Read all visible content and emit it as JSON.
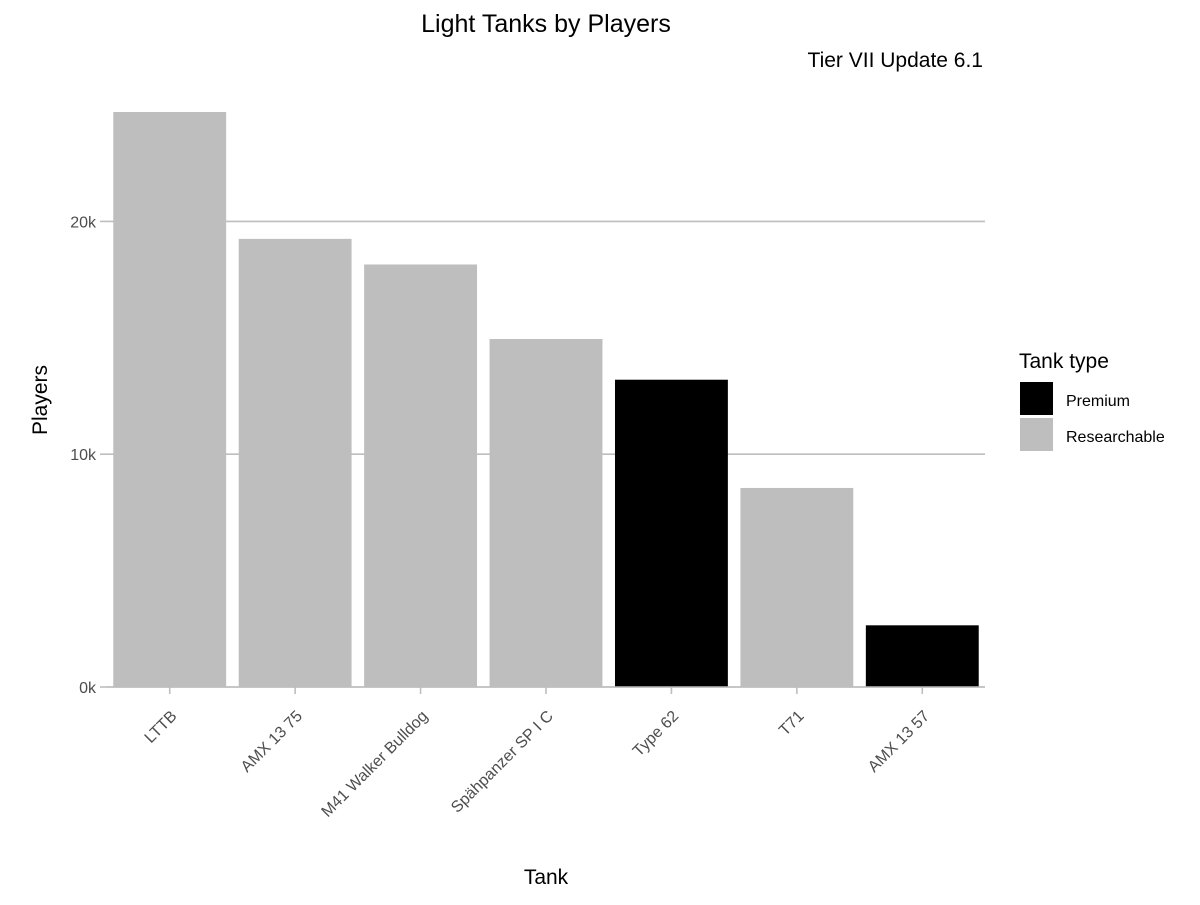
{
  "chart_data": {
    "type": "bar",
    "title": "Light Tanks by Players",
    "subtitle": "Tier VII Update 6.1",
    "xlabel": "Tank",
    "ylabel": "Players",
    "categories": [
      "LTTB",
      "AMX 13 75",
      "M41 Walker Bulldog",
      "Spähpanzer SP I C",
      "Type 62",
      "T71",
      "AMX 13 57"
    ],
    "values": [
      24700,
      19250,
      18150,
      14950,
      13200,
      8550,
      2650
    ],
    "tank_type": [
      "Researchable",
      "Researchable",
      "Researchable",
      "Researchable",
      "Premium",
      "Researchable",
      "Premium"
    ],
    "ylim": [
      0,
      24700
    ],
    "y_ticks": [
      0,
      10000,
      20000
    ],
    "y_tick_labels": [
      "0k",
      "10k",
      "20k"
    ],
    "grid": "horizontal major",
    "legend": {
      "title": "Tank type",
      "position": "right",
      "entries": [
        {
          "label": "Premium",
          "color": "#000000"
        },
        {
          "label": "Researchable",
          "color": "#bebebe"
        }
      ]
    },
    "colors": {
      "Premium": "#000000",
      "Researchable": "#bebebe",
      "grid": "#bebebe",
      "axis": "#bebebe"
    }
  }
}
